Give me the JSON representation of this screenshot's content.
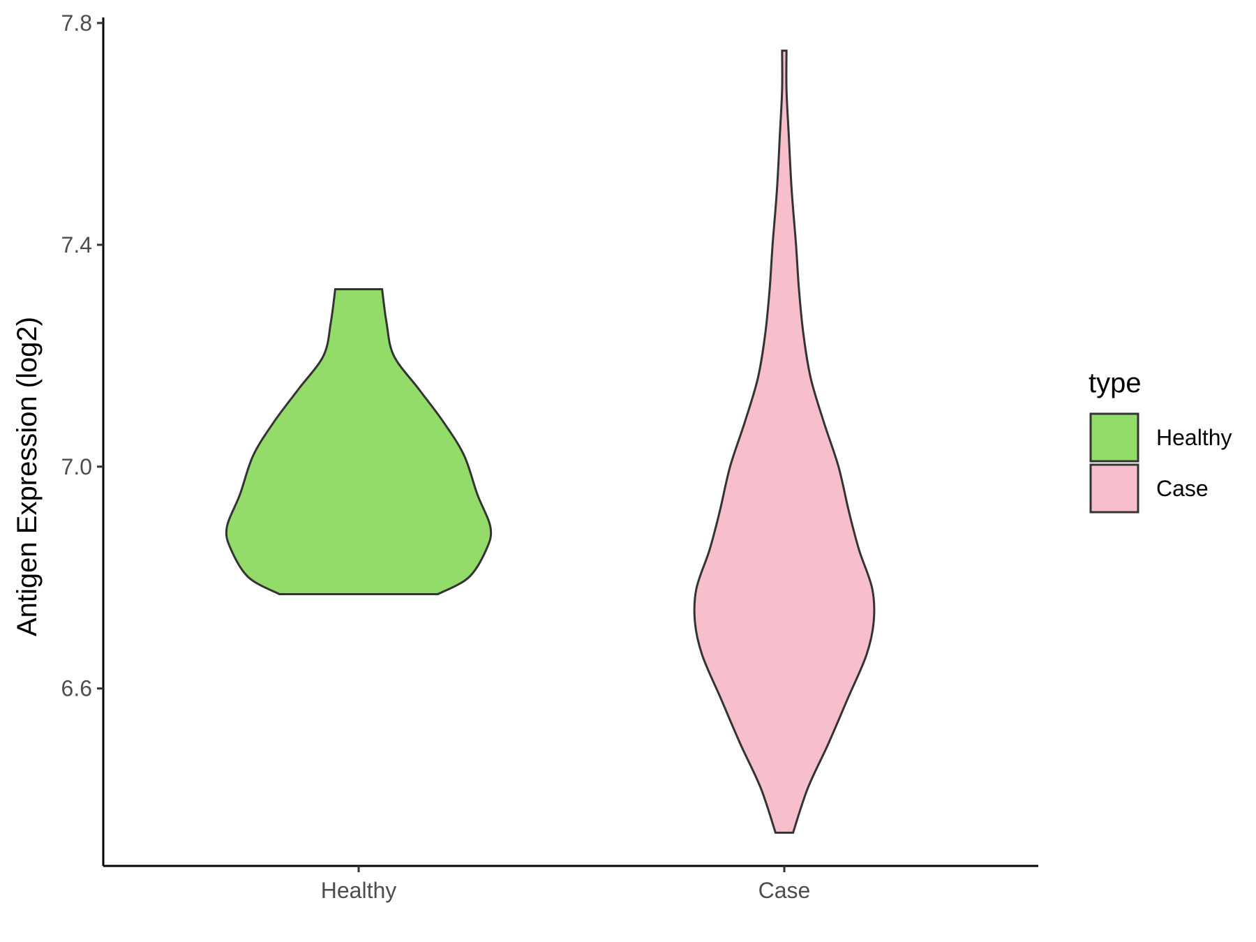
{
  "chart_data": {
    "type": "violin",
    "title": "",
    "xlabel": "",
    "ylabel": "Antigen Expression (log2)",
    "ylim": [
      6.28,
      7.81
    ],
    "y_ticks": [
      6.6,
      7.0,
      7.4,
      7.8
    ],
    "y_tick_labels": [
      "6.6",
      "7.0",
      "7.4",
      "7.8"
    ],
    "categories": [
      "Healthy",
      "Case"
    ],
    "grid": false,
    "legend": {
      "title": "type",
      "placement": "right",
      "entries": [
        "Healthy",
        "Case"
      ]
    },
    "series": [
      {
        "name": "Healthy",
        "color": "#93DC6A",
        "min": 6.77,
        "max": 7.32,
        "density_profile": [
          {
            "y": 6.77,
            "half_width": 0.54
          },
          {
            "y": 6.8,
            "half_width": 0.75
          },
          {
            "y": 6.85,
            "half_width": 0.87
          },
          {
            "y": 6.89,
            "half_width": 0.9
          },
          {
            "y": 6.95,
            "half_width": 0.81
          },
          {
            "y": 7.02,
            "half_width": 0.72
          },
          {
            "y": 7.08,
            "half_width": 0.58
          },
          {
            "y": 7.14,
            "half_width": 0.41
          },
          {
            "y": 7.2,
            "half_width": 0.24
          },
          {
            "y": 7.26,
            "half_width": 0.19
          },
          {
            "y": 7.32,
            "half_width": 0.16
          }
        ]
      },
      {
        "name": "Case",
        "color": "#F7BFCB",
        "min": 6.34,
        "max": 7.75,
        "density_profile": [
          {
            "y": 6.34,
            "half_width": 0.06
          },
          {
            "y": 6.42,
            "half_width": 0.16
          },
          {
            "y": 6.5,
            "half_width": 0.3
          },
          {
            "y": 6.58,
            "half_width": 0.43
          },
          {
            "y": 6.66,
            "half_width": 0.56
          },
          {
            "y": 6.72,
            "half_width": 0.61
          },
          {
            "y": 6.78,
            "half_width": 0.6
          },
          {
            "y": 6.85,
            "half_width": 0.51
          },
          {
            "y": 6.92,
            "half_width": 0.44
          },
          {
            "y": 7.0,
            "half_width": 0.37
          },
          {
            "y": 7.08,
            "half_width": 0.27
          },
          {
            "y": 7.16,
            "half_width": 0.18
          },
          {
            "y": 7.24,
            "half_width": 0.13
          },
          {
            "y": 7.32,
            "half_width": 0.1
          },
          {
            "y": 7.4,
            "half_width": 0.08
          },
          {
            "y": 7.5,
            "half_width": 0.05
          },
          {
            "y": 7.6,
            "half_width": 0.03
          },
          {
            "y": 7.68,
            "half_width": 0.015
          },
          {
            "y": 7.75,
            "half_width": 0.015
          }
        ]
      }
    ]
  }
}
